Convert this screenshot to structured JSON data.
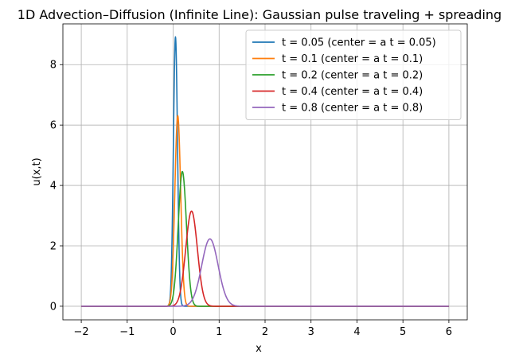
{
  "chart_data": {
    "type": "line",
    "title": "1D Advection–Diffusion (Infinite Line): Gaussian pulse traveling + spreading",
    "xlabel": "x",
    "ylabel": "u(x,t)",
    "xlim": [
      -2.4,
      6.4
    ],
    "ylim": [
      -0.45,
      9.35
    ],
    "x_ticks": [
      -2,
      -1,
      0,
      1,
      2,
      3,
      4,
      5,
      6
    ],
    "y_ticks": [
      0,
      2,
      4,
      6,
      8
    ],
    "grid": true,
    "legend_position": "top-right",
    "x_range": [
      -2,
      6
    ],
    "series": [
      {
        "name": "t = 0.05 (center = a t = 0.05)",
        "center": 0.05,
        "peak": 8.92,
        "width": 0.0447,
        "color": "#1f77b4"
      },
      {
        "name": "t = 0.1 (center = a t = 0.1)",
        "center": 0.1,
        "peak": 6.31,
        "width": 0.0632,
        "color": "#ff7f0e"
      },
      {
        "name": "t = 0.2 (center = a t = 0.2)",
        "center": 0.2,
        "peak": 4.46,
        "width": 0.0894,
        "color": "#2ca02c"
      },
      {
        "name": "t = 0.4 (center = a t = 0.4)",
        "center": 0.4,
        "peak": 3.15,
        "width": 0.1265,
        "color": "#d62728"
      },
      {
        "name": "t = 0.8 (center = a t = 0.8)",
        "center": 0.8,
        "peak": 2.23,
        "width": 0.1789,
        "color": "#9467bd"
      }
    ]
  }
}
